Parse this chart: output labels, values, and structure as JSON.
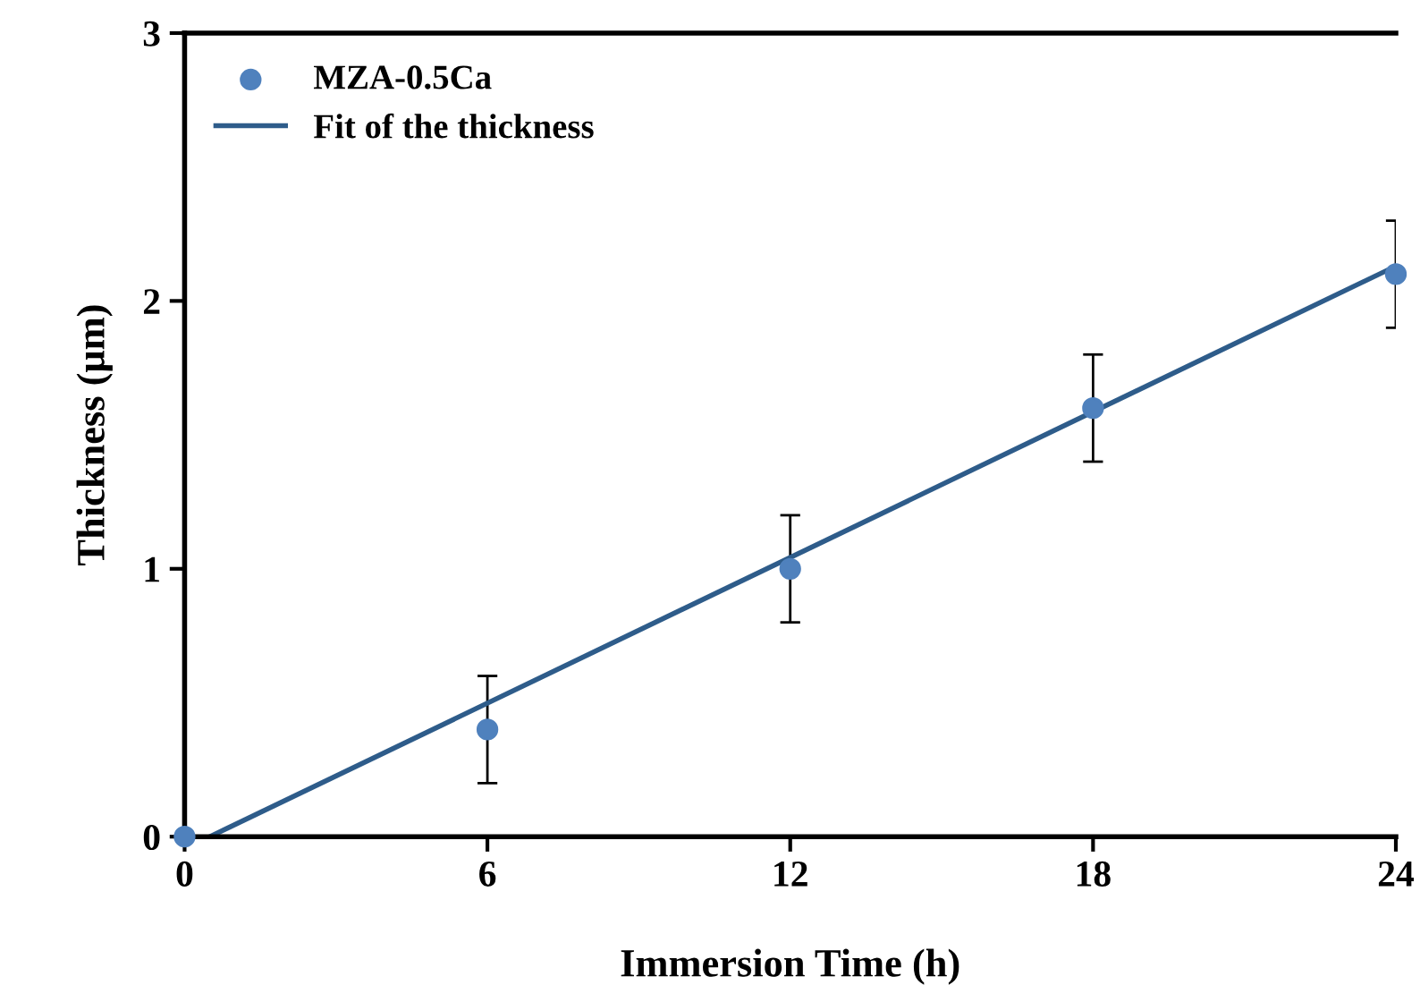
{
  "chart_data": {
    "type": "scatter",
    "xlabel": "Immersion Time (h)",
    "ylabel": "Thickness (μm)",
    "xlim": [
      0,
      24
    ],
    "xticks": [
      0,
      6,
      12,
      18,
      24
    ],
    "ylim": [
      0,
      3
    ],
    "yticks": [
      0,
      1,
      2,
      3
    ],
    "grid": false,
    "legend": "top left",
    "series": [
      {
        "name": "MZA-0.5Ca",
        "marker": "circle",
        "color": "#4f81bd",
        "x": [
          0,
          6,
          12,
          18,
          24
        ],
        "values": [
          0,
          0.4,
          1.0,
          1.6,
          2.1
        ],
        "errors": [
          null,
          0.2,
          0.2,
          0.2,
          0.2
        ]
      },
      {
        "name": "Fit of the thickness",
        "type": "line",
        "color": "#2e5c8a",
        "line_style": "solid",
        "x": [
          0.5,
          24
        ],
        "values": [
          0,
          2.13
        ]
      }
    ]
  }
}
